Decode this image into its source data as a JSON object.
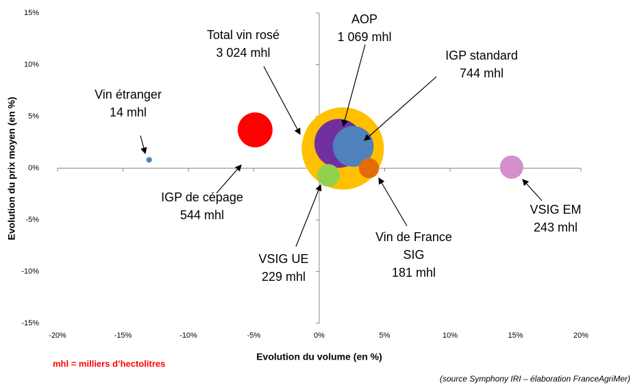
{
  "chart_data": {
    "type": "bubble",
    "xlabel": "Evolution du volume (en %)",
    "ylabel": "Evolution du prix moyen (en %)",
    "note": "mhl = milliers d’hectolitres",
    "source": "(source Symphony IRI – élaboration FranceAgriMer)",
    "xlim": [
      -20,
      20
    ],
    "xticks": [
      {
        "value": -20,
        "label": "-20%"
      },
      {
        "value": -15,
        "label": "-15%"
      },
      {
        "value": -10,
        "label": "-10%"
      },
      {
        "value": -5,
        "label": "-5%"
      },
      {
        "value": 0,
        "label": "0%"
      },
      {
        "value": 5,
        "label": "5%"
      },
      {
        "value": 10,
        "label": "10%"
      },
      {
        "value": 15,
        "label": "15%"
      },
      {
        "value": 20,
        "label": "20%"
      }
    ],
    "ylim": [
      -15,
      15
    ],
    "yticks": [
      {
        "value": -15,
        "label": "-15%"
      },
      {
        "value": -10,
        "label": "-10%"
      },
      {
        "value": -5,
        "label": "-5%"
      },
      {
        "value": 0,
        "label": "0%"
      },
      {
        "value": 5,
        "label": "5%"
      },
      {
        "value": 10,
        "label": "10%"
      },
      {
        "value": 15,
        "label": "15%"
      }
    ],
    "points": [
      {
        "name": "Vin étranger",
        "x": -13,
        "y": 0.8,
        "size": 14,
        "size_label": "14 mhl",
        "color": "#4f81bd"
      },
      {
        "name": "IGP de cépage",
        "x": -4.9,
        "y": 3.7,
        "size": 544,
        "size_label": "544 mhl",
        "color": "#ff0000"
      },
      {
        "name": "Total vin rosé",
        "x": 1.8,
        "y": 1.9,
        "size": 3024,
        "size_label": "3 024 mhl",
        "color": "#ffc000"
      },
      {
        "name": "AOP",
        "x": 1.5,
        "y": 2.4,
        "size": 1069,
        "size_label": "1 069 mhl",
        "color": "#7030a0"
      },
      {
        "name": "IGP standard",
        "x": 2.6,
        "y": 2.1,
        "size": 744,
        "size_label": "744 mhl",
        "color": "#4f81bd"
      },
      {
        "name": "VSIG UE",
        "x": 0.7,
        "y": -0.7,
        "size": 229,
        "size_label": "229 mhl",
        "color": "#92d050"
      },
      {
        "name": "Vin de France SIG",
        "x": 3.8,
        "y": 0,
        "size": 181,
        "size_label": "181 mhl",
        "color": "#e36c09"
      },
      {
        "name": "VSIG EM",
        "x": 14.7,
        "y": 0.1,
        "size": 243,
        "size_label": "243 mhl",
        "color": "#d58fcb"
      }
    ]
  }
}
